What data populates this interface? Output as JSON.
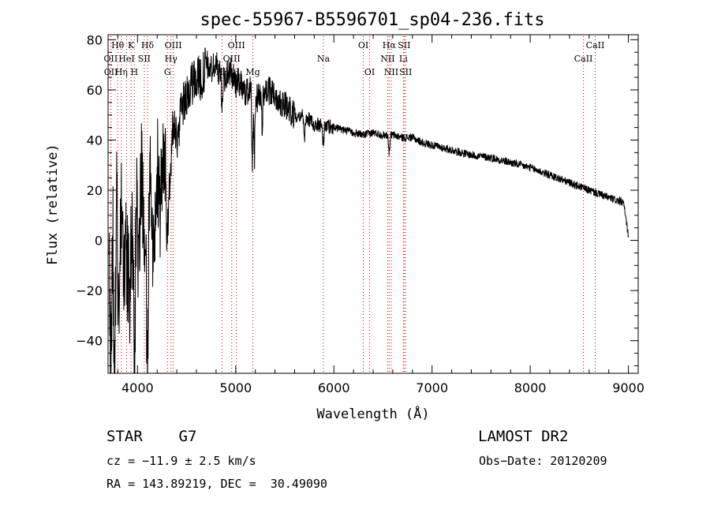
{
  "chart_data": {
    "type": "line",
    "title": "spec-55967-B5596701_sp04-236.fits",
    "xlabel": "Wavelength (Å)",
    "ylabel": "Flux (relative)",
    "xlim": [
      3700,
      9100
    ],
    "ylim": [
      -53,
      82
    ],
    "xticks": [
      4000,
      5000,
      6000,
      7000,
      8000,
      9000
    ],
    "yticks": [
      -40,
      -20,
      0,
      20,
      40,
      60,
      80
    ],
    "grid": false,
    "line_color": "#000000",
    "marker_color": "#cc0000",
    "spectrum_anchors": [
      [
        3700,
        0
      ],
      [
        3730,
        -45
      ],
      [
        3750,
        10
      ],
      [
        3770,
        -40
      ],
      [
        3790,
        30
      ],
      [
        3810,
        -25
      ],
      [
        3840,
        20
      ],
      [
        3860,
        -15
      ],
      [
        3890,
        15
      ],
      [
        3920,
        -30
      ],
      [
        3940,
        5
      ],
      [
        3970,
        -20
      ],
      [
        3990,
        20
      ],
      [
        4010,
        -10
      ],
      [
        4040,
        30
      ],
      [
        4070,
        -5
      ],
      [
        4100,
        -20
      ],
      [
        4130,
        20
      ],
      [
        4160,
        0
      ],
      [
        4200,
        30
      ],
      [
        4230,
        10
      ],
      [
        4260,
        38
      ],
      [
        4300,
        15
      ],
      [
        4330,
        25
      ],
      [
        4360,
        45
      ],
      [
        4400,
        40
      ],
      [
        4450,
        52
      ],
      [
        4500,
        58
      ],
      [
        4550,
        62
      ],
      [
        4600,
        66
      ],
      [
        4650,
        64
      ],
      [
        4700,
        70
      ],
      [
        4750,
        68
      ],
      [
        4800,
        70
      ],
      [
        4850,
        66
      ],
      [
        4900,
        65
      ],
      [
        4950,
        68
      ],
      [
        5000,
        62
      ],
      [
        5050,
        64
      ],
      [
        5100,
        58
      ],
      [
        5150,
        62
      ],
      [
        5200,
        56
      ],
      [
        5300,
        60
      ],
      [
        5400,
        58
      ],
      [
        5500,
        54
      ],
      [
        5600,
        50
      ],
      [
        5700,
        50
      ],
      [
        5800,
        46
      ],
      [
        5900,
        46
      ],
      [
        6000,
        45
      ],
      [
        6100,
        44
      ],
      [
        6200,
        43
      ],
      [
        6300,
        42
      ],
      [
        6400,
        43
      ],
      [
        6500,
        42
      ],
      [
        6600,
        42
      ],
      [
        6700,
        41
      ],
      [
        6800,
        41
      ],
      [
        6900,
        39
      ],
      [
        7000,
        38
      ],
      [
        7200,
        36
      ],
      [
        7400,
        34
      ],
      [
        7600,
        33
      ],
      [
        7800,
        31
      ],
      [
        8000,
        29
      ],
      [
        8200,
        26
      ],
      [
        8400,
        23
      ],
      [
        8600,
        20
      ],
      [
        8800,
        17
      ],
      [
        8950,
        15
      ],
      [
        9000,
        2
      ]
    ],
    "absorption_dips": [
      {
        "x": 3760,
        "depth": 40
      },
      {
        "x": 3800,
        "depth": 30
      },
      {
        "x": 3890,
        "depth": 30
      },
      {
        "x": 3970,
        "depth": 40
      },
      {
        "x": 4101,
        "depth": 30
      },
      {
        "x": 4310,
        "depth": 15
      },
      {
        "x": 4860,
        "depth": 12
      },
      {
        "x": 5170,
        "depth": 28
      },
      {
        "x": 5190,
        "depth": 25
      },
      {
        "x": 5270,
        "depth": 12
      },
      {
        "x": 5700,
        "depth": 12
      },
      {
        "x": 5893,
        "depth": 8
      },
      {
        "x": 6563,
        "depth": 7
      }
    ],
    "line_markers": [
      {
        "label": "Hθ",
        "x": 3798,
        "row": 1
      },
      {
        "label": "K",
        "x": 3934,
        "row": 1
      },
      {
        "label": "Hδ",
        "x": 4102,
        "row": 1
      },
      {
        "label": "OIII",
        "x": 4364,
        "row": 1
      },
      {
        "label": "OIII",
        "x": 5007,
        "row": 1
      },
      {
        "label": "OI",
        "x": 6300,
        "row": 1
      },
      {
        "label": "Hα",
        "x": 6563,
        "row": 1
      },
      {
        "label": "SII",
        "x": 6716,
        "row": 1
      },
      {
        "label": "CaII",
        "x": 8662,
        "row": 1
      },
      {
        "label": "OII",
        "x": 3727,
        "row": 2
      },
      {
        "label": "HeI",
        "x": 3889,
        "row": 2
      },
      {
        "label": "SII",
        "x": 4069,
        "row": 2
      },
      {
        "label": "Hγ",
        "x": 4341,
        "row": 2
      },
      {
        "label": "OIII",
        "x": 4959,
        "row": 2
      },
      {
        "label": "Na",
        "x": 5893,
        "row": 2
      },
      {
        "label": "NII",
        "x": 6548,
        "row": 2
      },
      {
        "label": "Li",
        "x": 6708,
        "row": 2
      },
      {
        "label": "CaII",
        "x": 8542,
        "row": 2
      },
      {
        "label": "OII",
        "x": 3729,
        "row": 3
      },
      {
        "label": "Hη",
        "x": 3835,
        "row": 3
      },
      {
        "label": "H",
        "x": 3968,
        "row": 3
      },
      {
        "label": "G",
        "x": 4305,
        "row": 3
      },
      {
        "label": "Hβ",
        "x": 4861,
        "row": 3
      },
      {
        "label": "Mg",
        "x": 5175,
        "row": 3
      },
      {
        "label": "OI",
        "x": 6364,
        "row": 3
      },
      {
        "label": "NII",
        "x": 6584,
        "row": 3
      },
      {
        "label": "SII",
        "x": 6731,
        "row": 3
      }
    ]
  },
  "info": {
    "class": "STAR    G7",
    "cz": "cz = −11.9 ± 2.5 km/s",
    "coords": "RA = 143.89219, DEC =  30.49090",
    "survey": "LAMOST DR2",
    "obs_date": "Obs−Date: 20120209"
  }
}
